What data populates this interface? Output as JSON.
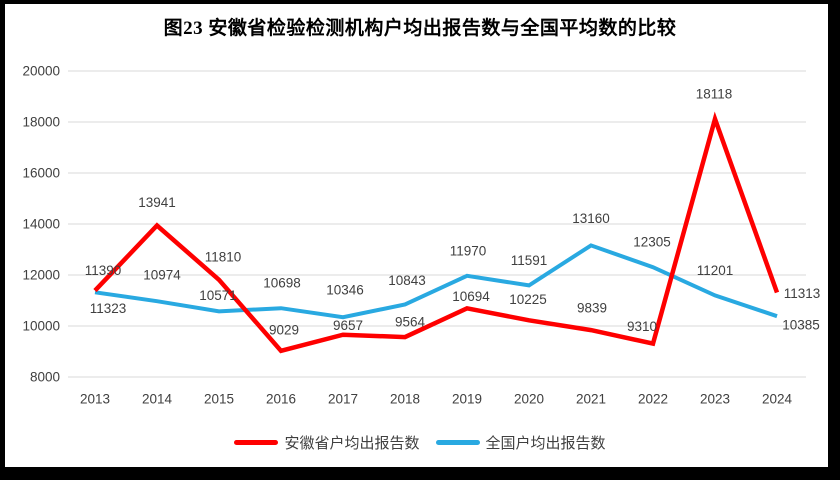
{
  "frame": {
    "border_color": "#000000"
  },
  "chart_data": {
    "type": "line",
    "title": "图23 安徽省检验检测机构户均出报告数与全国平均数的比较",
    "categories": [
      "2013",
      "2014",
      "2015",
      "2016",
      "2017",
      "2018",
      "2019",
      "2020",
      "2021",
      "2022",
      "2023",
      "2024"
    ],
    "series": [
      {
        "name": "安徽省户均出报告数",
        "color": "#FE0000",
        "values": [
          11390,
          13941,
          11810,
          9029,
          9657,
          9564,
          10694,
          10225,
          9839,
          9310,
          18118,
          11313
        ]
      },
      {
        "name": "全国户均出报告数",
        "color": "#29A9E1",
        "values": [
          11323,
          10974,
          10571,
          10698,
          10346,
          10843,
          11970,
          11591,
          13160,
          12305,
          11201,
          10385
        ]
      }
    ],
    "xlabel": "",
    "ylabel": "",
    "ylim": [
      8000,
      20000
    ],
    "yticks": [
      8000,
      10000,
      12000,
      14000,
      16000,
      18000,
      20000
    ],
    "grid": "horizontal-only",
    "gridline_color": "#D9D9D9",
    "tick_label_color": "#404040",
    "data_label_color": "#404040",
    "data_labels": true,
    "legend_position": "bottom"
  }
}
